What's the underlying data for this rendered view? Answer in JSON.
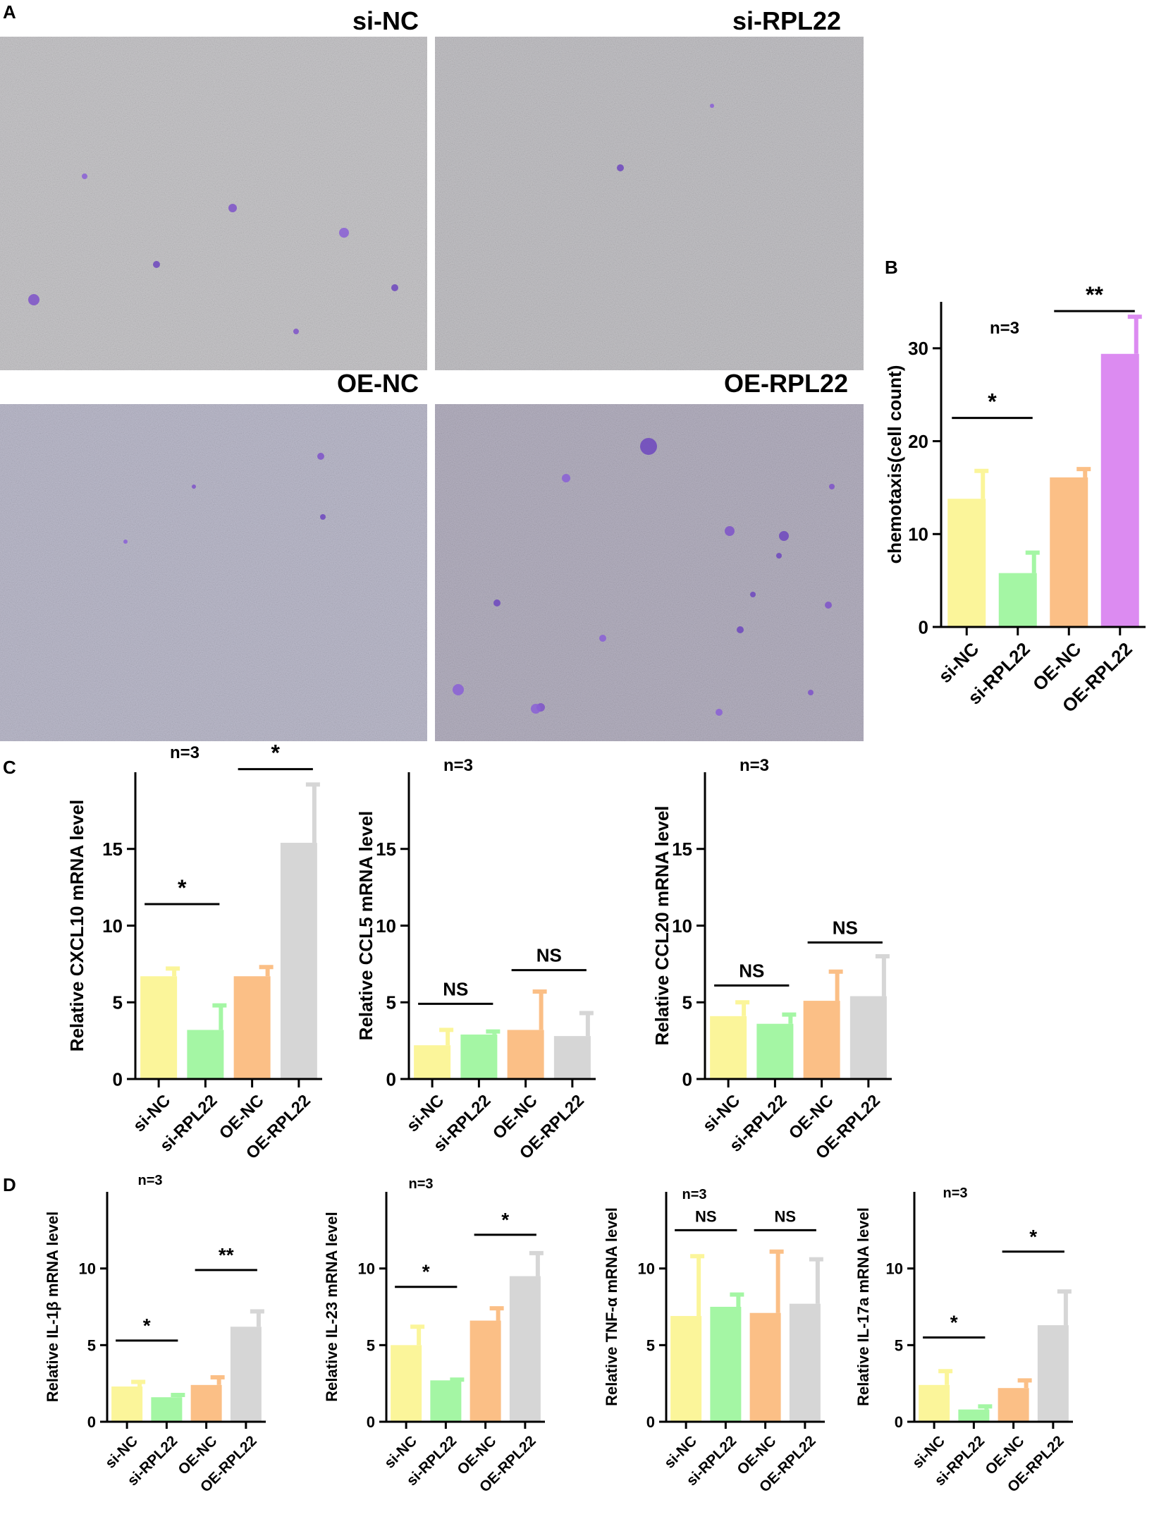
{
  "panel_labels": [
    "A",
    "B",
    "C",
    "D"
  ],
  "micrographs": [
    {
      "label": "si-NC"
    },
    {
      "label": "si-RPL22"
    },
    {
      "label": "OE-NC"
    },
    {
      "label": "OE-RPL22"
    }
  ],
  "colors": {
    "si-NC": "#fbf59a",
    "si-RPL22": "#a4f6a4",
    "OE-NC": "#fbbf86",
    "OE-RPL22-B": "#dc8bf1",
    "OE-RPL22": "#d6d6d6",
    "axis": "#000000",
    "background_wells": [
      "#c9c8cb",
      "#c4c3c7",
      "#bdbccd",
      "#b6b2c2"
    ]
  },
  "chart_data": [
    {
      "panel": "B",
      "type": "bar",
      "categories": [
        "si-NC",
        "si-RPL22",
        "OE-NC",
        "OE-RPL22"
      ],
      "values": [
        13.8,
        5.8,
        16.1,
        29.4
      ],
      "errors": [
        3.0,
        2.2,
        0.9,
        4.0
      ],
      "ylabel": "chemotaxis(cell count)",
      "ylim": [
        0,
        35
      ],
      "yticks": [
        0,
        10,
        20,
        30
      ],
      "n_label": "n=3",
      "significance": [
        {
          "pair": [
            0,
            1
          ],
          "label": "*",
          "y": 22.5
        },
        {
          "pair": [
            2,
            3
          ],
          "label": "**",
          "y": 34.0
        }
      ]
    },
    {
      "panel": "C",
      "type": "bar",
      "categories": [
        "si-NC",
        "si-RPL22",
        "OE-NC",
        "OE-RPL22"
      ],
      "values": [
        6.7,
        3.2,
        6.7,
        15.4
      ],
      "errors": [
        0.5,
        1.6,
        0.6,
        3.8
      ],
      "ylabel": "Relative CXCL10 mRNA level",
      "ylim": [
        0,
        20
      ],
      "yticks": [
        0,
        5,
        10,
        15
      ],
      "n_label": "n=3",
      "significance": [
        {
          "pair": [
            0,
            1
          ],
          "label": "*",
          "y": 11.4
        },
        {
          "pair": [
            2,
            3
          ],
          "label": "*",
          "y": 20.2
        }
      ]
    },
    {
      "panel": "C",
      "type": "bar",
      "categories": [
        "si-NC",
        "si-RPL22",
        "OE-NC",
        "OE-RPL22"
      ],
      "values": [
        2.2,
        2.9,
        3.2,
        2.8
      ],
      "errors": [
        1.0,
        0.2,
        2.5,
        1.5
      ],
      "ylabel": "Relative CCL5 mRNA level",
      "ylim": [
        0,
        20
      ],
      "yticks": [
        0,
        5,
        10,
        15
      ],
      "n_label": "n=3",
      "significance": [
        {
          "pair": [
            0,
            1
          ],
          "label": "NS",
          "y": 4.9
        },
        {
          "pair": [
            2,
            3
          ],
          "label": "NS",
          "y": 7.1
        }
      ]
    },
    {
      "panel": "C",
      "type": "bar",
      "categories": [
        "si-NC",
        "si-RPL22",
        "OE-NC",
        "OE-RPL22"
      ],
      "values": [
        4.1,
        3.6,
        5.1,
        5.4
      ],
      "errors": [
        0.9,
        0.6,
        1.9,
        2.6
      ],
      "ylabel": "Relative CCL20 mRNA level",
      "ylim": [
        0,
        20
      ],
      "yticks": [
        0,
        5,
        10,
        15
      ],
      "n_label": "n=3",
      "significance": [
        {
          "pair": [
            0,
            1
          ],
          "label": "NS",
          "y": 6.1
        },
        {
          "pair": [
            2,
            3
          ],
          "label": "NS",
          "y": 8.9
        }
      ]
    },
    {
      "panel": "D",
      "type": "bar",
      "categories": [
        "si-NC",
        "si-RPL22",
        "OE-NC",
        "OE-RPL22"
      ],
      "values": [
        2.3,
        1.6,
        2.4,
        6.2
      ],
      "errors": [
        0.3,
        0.15,
        0.5,
        1.0
      ],
      "ylabel": "Relative IL-1β mRNA level",
      "ylim": [
        0,
        15
      ],
      "yticks": [
        0,
        5,
        10
      ],
      "n_label": "n=3",
      "significance": [
        {
          "pair": [
            0,
            1
          ],
          "label": "*",
          "y": 5.3
        },
        {
          "pair": [
            2,
            3
          ],
          "label": "**",
          "y": 9.9
        }
      ]
    },
    {
      "panel": "D",
      "type": "bar",
      "categories": [
        "si-NC",
        "si-RPL22",
        "OE-NC",
        "OE-RPL22"
      ],
      "values": [
        5.0,
        2.7,
        6.6,
        9.5
      ],
      "errors": [
        1.2,
        0.05,
        0.8,
        1.5
      ],
      "ylabel": "Relative IL-23 mRNA level",
      "ylim": [
        0,
        15
      ],
      "yticks": [
        0,
        5,
        10
      ],
      "n_label": "n=3",
      "significance": [
        {
          "pair": [
            0,
            1
          ],
          "label": "*",
          "y": 8.8
        },
        {
          "pair": [
            2,
            3
          ],
          "label": "*",
          "y": 12.2
        }
      ]
    },
    {
      "panel": "D",
      "type": "bar",
      "categories": [
        "si-NC",
        "si-RPL22",
        "OE-NC",
        "OE-RPL22"
      ],
      "values": [
        6.9,
        7.5,
        7.1,
        7.7
      ],
      "errors": [
        3.9,
        0.8,
        4.0,
        2.9
      ],
      "ylabel": "Relative TNF-α mRNA level",
      "ylim": [
        0,
        15
      ],
      "yticks": [
        0,
        5,
        10
      ],
      "n_label": "n=3",
      "significance": [
        {
          "pair": [
            0,
            1
          ],
          "label": "NS",
          "y": 12.5
        },
        {
          "pair": [
            2,
            3
          ],
          "label": "NS",
          "y": 12.5
        }
      ]
    },
    {
      "panel": "D",
      "type": "bar",
      "categories": [
        "si-NC",
        "si-RPL22",
        "OE-NC",
        "OE-RPL22"
      ],
      "values": [
        2.4,
        0.8,
        2.2,
        6.3
      ],
      "errors": [
        0.9,
        0.2,
        0.5,
        2.2
      ],
      "ylabel": "Relative IL-17a mRNA level",
      "ylim": [
        0,
        15
      ],
      "yticks": [
        0,
        5,
        10
      ],
      "n_label": "n=3",
      "significance": [
        {
          "pair": [
            0,
            1
          ],
          "label": "*",
          "y": 5.5
        },
        {
          "pair": [
            2,
            3
          ],
          "label": "*",
          "y": 11.1
        }
      ]
    }
  ]
}
